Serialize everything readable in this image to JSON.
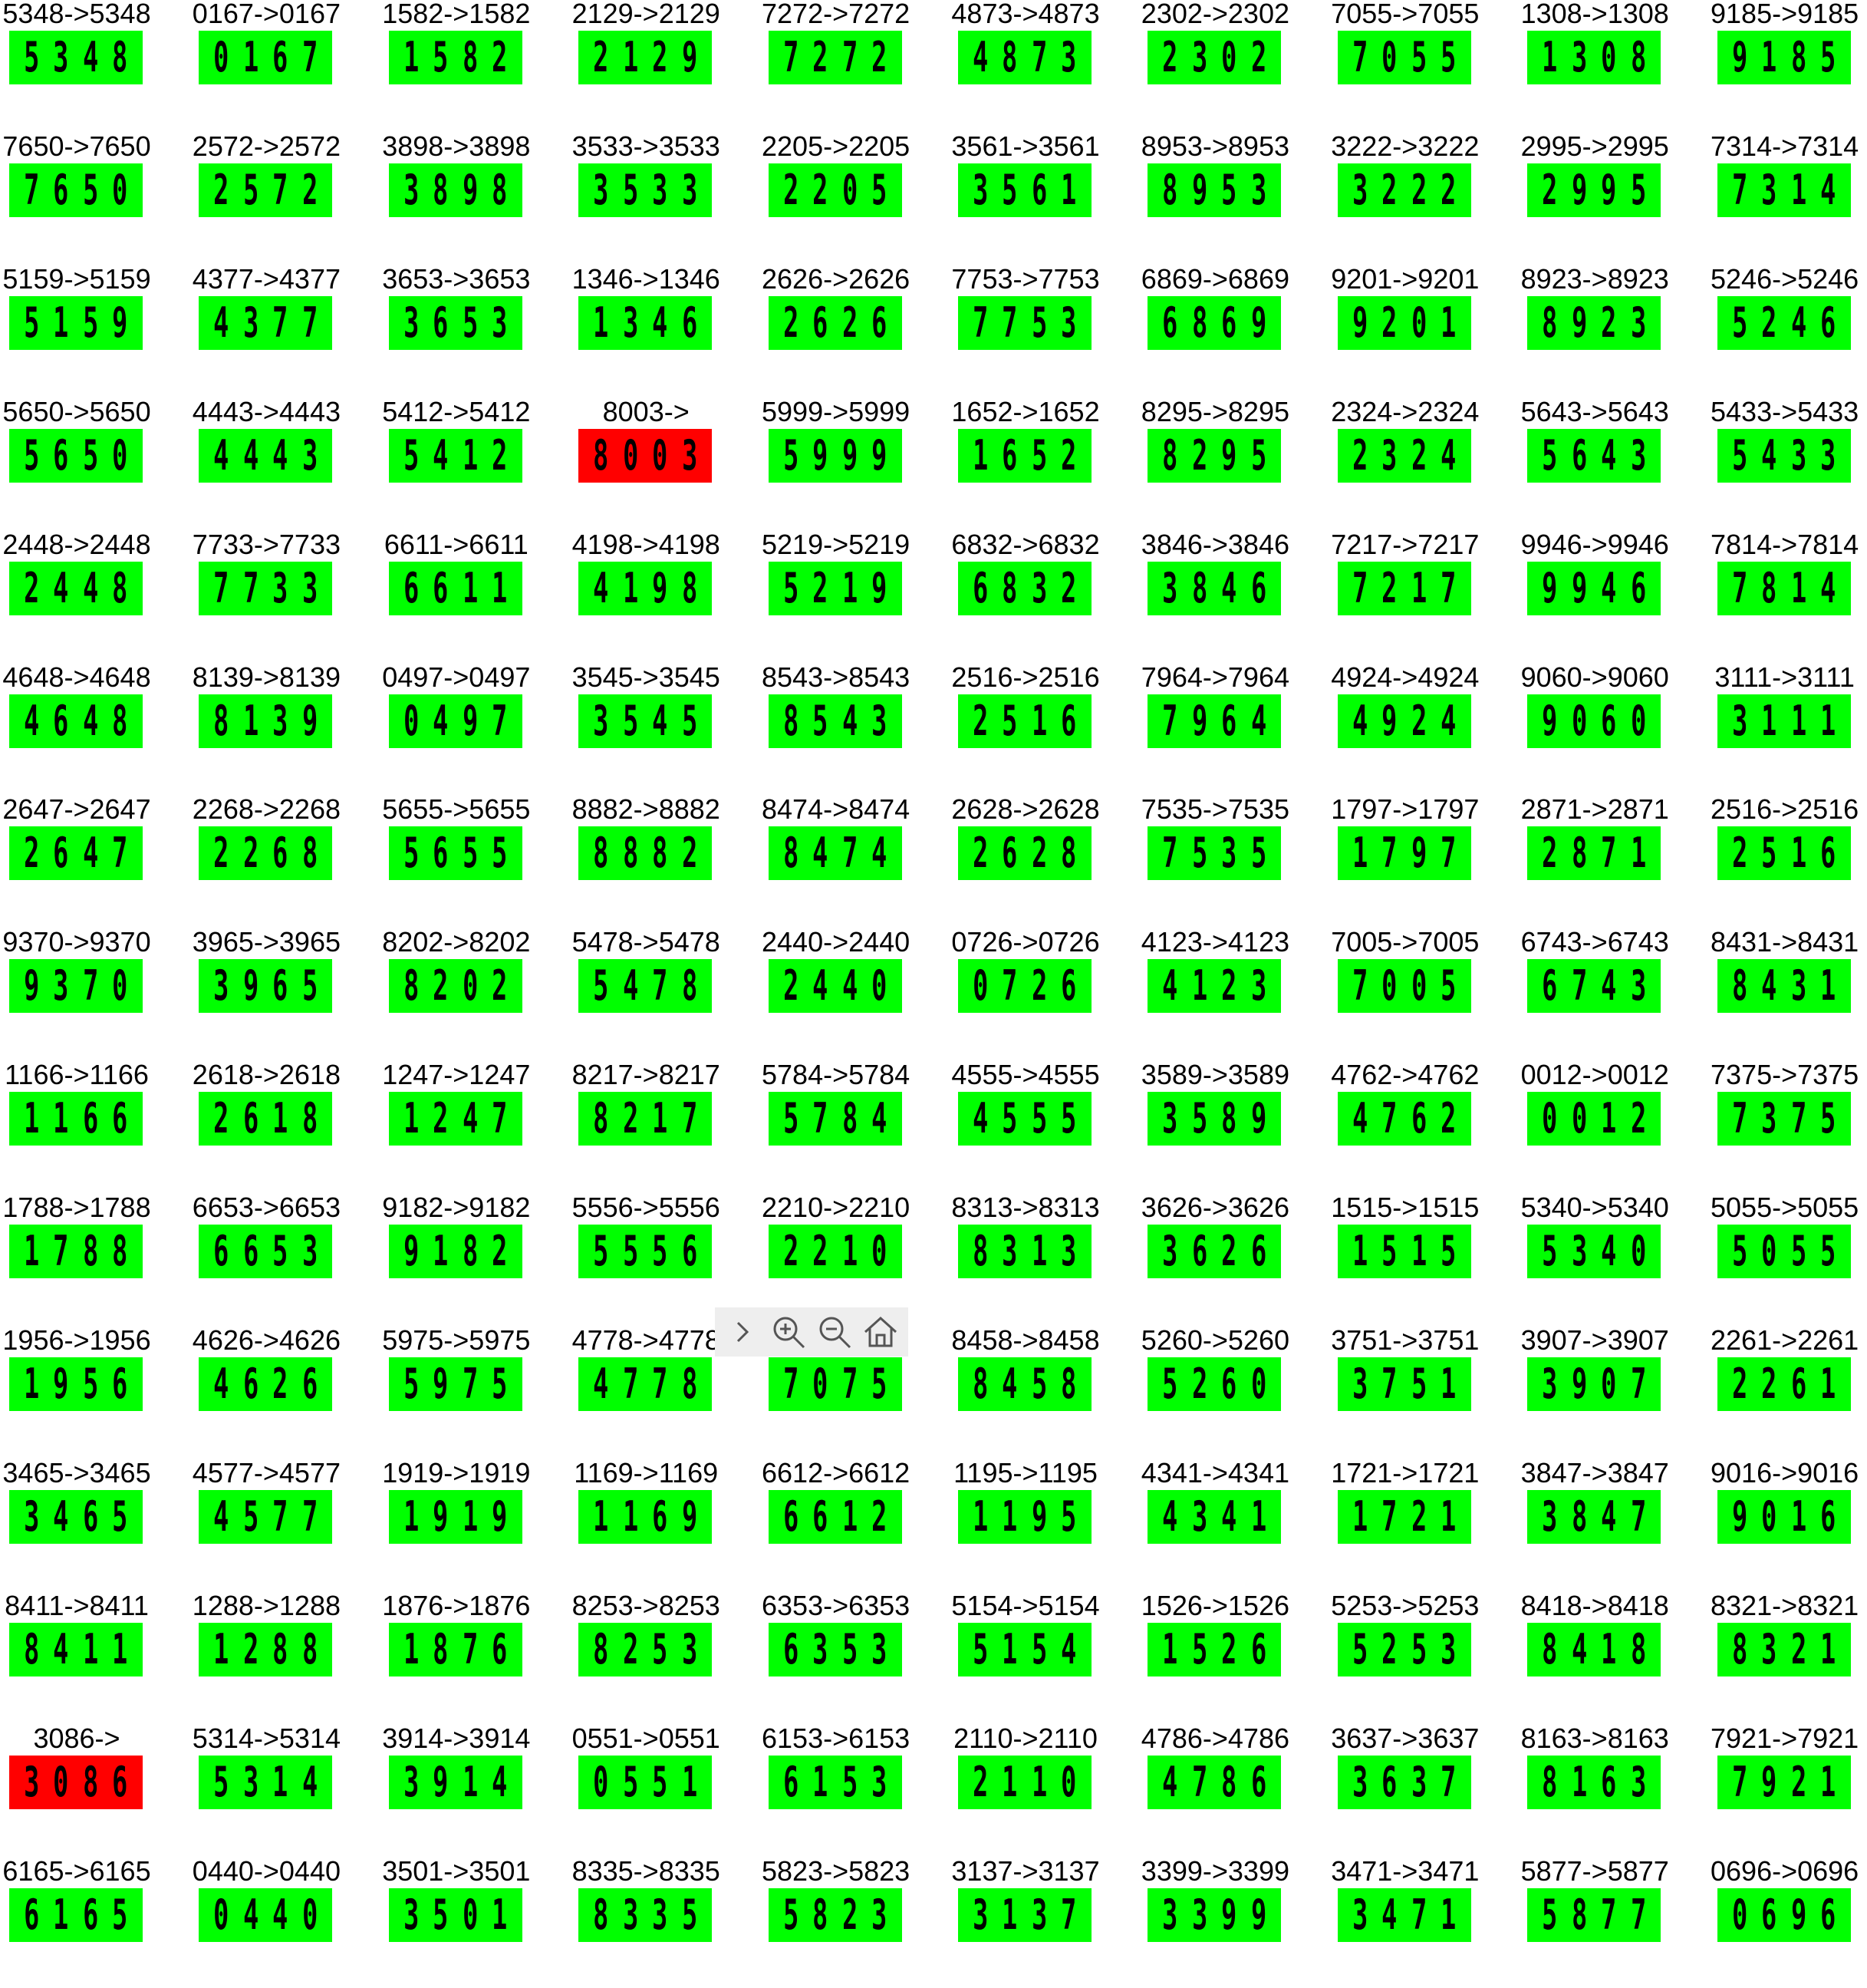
{
  "colors": {
    "ok": "#00ff00",
    "error": "#ff0000",
    "text": "#000000"
  },
  "rows": [
    [
      {
        "label": "5348->5348",
        "digits": "5348",
        "status": "ok"
      },
      {
        "label": "0167->0167",
        "digits": "0167",
        "status": "ok"
      },
      {
        "label": "1582->1582",
        "digits": "1582",
        "status": "ok"
      },
      {
        "label": "2129->2129",
        "digits": "2129",
        "status": "ok"
      },
      {
        "label": "7272->7272",
        "digits": "7272",
        "status": "ok"
      },
      {
        "label": "4873->4873",
        "digits": "4873",
        "status": "ok"
      },
      {
        "label": "2302->2302",
        "digits": "2302",
        "status": "ok"
      },
      {
        "label": "7055->7055",
        "digits": "7055",
        "status": "ok"
      },
      {
        "label": "1308->1308",
        "digits": "1308",
        "status": "ok"
      },
      {
        "label": "9185->9185",
        "digits": "9185",
        "status": "ok"
      }
    ],
    [
      {
        "label": "7650->7650",
        "digits": "7650",
        "status": "ok"
      },
      {
        "label": "2572->2572",
        "digits": "2572",
        "status": "ok"
      },
      {
        "label": "3898->3898",
        "digits": "3898",
        "status": "ok"
      },
      {
        "label": "3533->3533",
        "digits": "3533",
        "status": "ok"
      },
      {
        "label": "2205->2205",
        "digits": "2205",
        "status": "ok"
      },
      {
        "label": "3561->3561",
        "digits": "3561",
        "status": "ok"
      },
      {
        "label": "8953->8953",
        "digits": "8953",
        "status": "ok"
      },
      {
        "label": "3222->3222",
        "digits": "3222",
        "status": "ok"
      },
      {
        "label": "2995->2995",
        "digits": "2995",
        "status": "ok"
      },
      {
        "label": "7314->7314",
        "digits": "7314",
        "status": "ok"
      }
    ],
    [
      {
        "label": "5159->5159",
        "digits": "5159",
        "status": "ok"
      },
      {
        "label": "4377->4377",
        "digits": "4377",
        "status": "ok"
      },
      {
        "label": "3653->3653",
        "digits": "3653",
        "status": "ok"
      },
      {
        "label": "1346->1346",
        "digits": "1346",
        "status": "ok"
      },
      {
        "label": "2626->2626",
        "digits": "2626",
        "status": "ok"
      },
      {
        "label": "7753->7753",
        "digits": "7753",
        "status": "ok"
      },
      {
        "label": "6869->6869",
        "digits": "6869",
        "status": "ok"
      },
      {
        "label": "9201->9201",
        "digits": "9201",
        "status": "ok"
      },
      {
        "label": "8923->8923",
        "digits": "8923",
        "status": "ok"
      },
      {
        "label": "5246->5246",
        "digits": "5246",
        "status": "ok"
      }
    ],
    [
      {
        "label": "5650->5650",
        "digits": "5650",
        "status": "ok"
      },
      {
        "label": "4443->4443",
        "digits": "4443",
        "status": "ok"
      },
      {
        "label": "5412->5412",
        "digits": "5412",
        "status": "ok"
      },
      {
        "label": "8003->",
        "digits": "8003",
        "status": "error"
      },
      {
        "label": "5999->5999",
        "digits": "5999",
        "status": "ok"
      },
      {
        "label": "1652->1652",
        "digits": "1652",
        "status": "ok"
      },
      {
        "label": "8295->8295",
        "digits": "8295",
        "status": "ok"
      },
      {
        "label": "2324->2324",
        "digits": "2324",
        "status": "ok"
      },
      {
        "label": "5643->5643",
        "digits": "5643",
        "status": "ok"
      },
      {
        "label": "5433->5433",
        "digits": "5433",
        "status": "ok"
      }
    ],
    [
      {
        "label": "2448->2448",
        "digits": "2448",
        "status": "ok"
      },
      {
        "label": "7733->7733",
        "digits": "7733",
        "status": "ok"
      },
      {
        "label": "6611->6611",
        "digits": "6611",
        "status": "ok"
      },
      {
        "label": "4198->4198",
        "digits": "4198",
        "status": "ok"
      },
      {
        "label": "5219->5219",
        "digits": "5219",
        "status": "ok"
      },
      {
        "label": "6832->6832",
        "digits": "6832",
        "status": "ok"
      },
      {
        "label": "3846->3846",
        "digits": "3846",
        "status": "ok"
      },
      {
        "label": "7217->7217",
        "digits": "7217",
        "status": "ok"
      },
      {
        "label": "9946->9946",
        "digits": "9946",
        "status": "ok"
      },
      {
        "label": "7814->7814",
        "digits": "7814",
        "status": "ok"
      }
    ],
    [
      {
        "label": "4648->4648",
        "digits": "4648",
        "status": "ok"
      },
      {
        "label": "8139->8139",
        "digits": "8139",
        "status": "ok"
      },
      {
        "label": "0497->0497",
        "digits": "0497",
        "status": "ok"
      },
      {
        "label": "3545->3545",
        "digits": "3545",
        "status": "ok"
      },
      {
        "label": "8543->8543",
        "digits": "8543",
        "status": "ok"
      },
      {
        "label": "2516->2516",
        "digits": "2516",
        "status": "ok"
      },
      {
        "label": "7964->7964",
        "digits": "7964",
        "status": "ok"
      },
      {
        "label": "4924->4924",
        "digits": "4924",
        "status": "ok"
      },
      {
        "label": "9060->9060",
        "digits": "9060",
        "status": "ok"
      },
      {
        "label": "3111->3111",
        "digits": "3111",
        "status": "ok"
      }
    ],
    [
      {
        "label": "2647->2647",
        "digits": "2647",
        "status": "ok"
      },
      {
        "label": "2268->2268",
        "digits": "2268",
        "status": "ok"
      },
      {
        "label": "5655->5655",
        "digits": "5655",
        "status": "ok"
      },
      {
        "label": "8882->8882",
        "digits": "8882",
        "status": "ok"
      },
      {
        "label": "8474->8474",
        "digits": "8474",
        "status": "ok"
      },
      {
        "label": "2628->2628",
        "digits": "2628",
        "status": "ok"
      },
      {
        "label": "7535->7535",
        "digits": "7535",
        "status": "ok"
      },
      {
        "label": "1797->1797",
        "digits": "1797",
        "status": "ok"
      },
      {
        "label": "2871->2871",
        "digits": "2871",
        "status": "ok"
      },
      {
        "label": "2516->2516",
        "digits": "2516",
        "status": "ok"
      }
    ],
    [
      {
        "label": "9370->9370",
        "digits": "9370",
        "status": "ok"
      },
      {
        "label": "3965->3965",
        "digits": "3965",
        "status": "ok"
      },
      {
        "label": "8202->8202",
        "digits": "8202",
        "status": "ok"
      },
      {
        "label": "5478->5478",
        "digits": "5478",
        "status": "ok"
      },
      {
        "label": "2440->2440",
        "digits": "2440",
        "status": "ok"
      },
      {
        "label": "0726->0726",
        "digits": "0726",
        "status": "ok"
      },
      {
        "label": "4123->4123",
        "digits": "4123",
        "status": "ok"
      },
      {
        "label": "7005->7005",
        "digits": "7005",
        "status": "ok"
      },
      {
        "label": "6743->6743",
        "digits": "6743",
        "status": "ok"
      },
      {
        "label": "8431->8431",
        "digits": "8431",
        "status": "ok"
      }
    ],
    [
      {
        "label": "1166->1166",
        "digits": "1166",
        "status": "ok"
      },
      {
        "label": "2618->2618",
        "digits": "2618",
        "status": "ok"
      },
      {
        "label": "1247->1247",
        "digits": "1247",
        "status": "ok"
      },
      {
        "label": "8217->8217",
        "digits": "8217",
        "status": "ok"
      },
      {
        "label": "5784->5784",
        "digits": "5784",
        "status": "ok"
      },
      {
        "label": "4555->4555",
        "digits": "4555",
        "status": "ok"
      },
      {
        "label": "3589->3589",
        "digits": "3589",
        "status": "ok"
      },
      {
        "label": "4762->4762",
        "digits": "4762",
        "status": "ok"
      },
      {
        "label": "0012->0012",
        "digits": "0012",
        "status": "ok"
      },
      {
        "label": "7375->7375",
        "digits": "7375",
        "status": "ok"
      }
    ],
    [
      {
        "label": "1788->1788",
        "digits": "1788",
        "status": "ok"
      },
      {
        "label": "6653->6653",
        "digits": "6653",
        "status": "ok"
      },
      {
        "label": "9182->9182",
        "digits": "9182",
        "status": "ok"
      },
      {
        "label": "5556->5556",
        "digits": "5556",
        "status": "ok"
      },
      {
        "label": "2210->2210",
        "digits": "2210",
        "status": "ok"
      },
      {
        "label": "8313->8313",
        "digits": "8313",
        "status": "ok"
      },
      {
        "label": "3626->3626",
        "digits": "3626",
        "status": "ok"
      },
      {
        "label": "1515->1515",
        "digits": "1515",
        "status": "ok"
      },
      {
        "label": "5340->5340",
        "digits": "5340",
        "status": "ok"
      },
      {
        "label": "5055->5055",
        "digits": "5055",
        "status": "ok"
      }
    ],
    [
      {
        "label": "1956->1956",
        "digits": "1956",
        "status": "ok"
      },
      {
        "label": "4626->4626",
        "digits": "4626",
        "status": "ok"
      },
      {
        "label": "5975->5975",
        "digits": "5975",
        "status": "ok"
      },
      {
        "label": "4778->4778",
        "digits": "4778",
        "status": "ok"
      },
      {
        "label": "",
        "digits": "7075",
        "status": "ok"
      },
      {
        "label": "8458->8458",
        "digits": "8458",
        "status": "ok"
      },
      {
        "label": "5260->5260",
        "digits": "5260",
        "status": "ok"
      },
      {
        "label": "3751->3751",
        "digits": "3751",
        "status": "ok"
      },
      {
        "label": "3907->3907",
        "digits": "3907",
        "status": "ok"
      },
      {
        "label": "2261->2261",
        "digits": "2261",
        "status": "ok"
      }
    ],
    [
      {
        "label": "3465->3465",
        "digits": "3465",
        "status": "ok"
      },
      {
        "label": "4577->4577",
        "digits": "4577",
        "status": "ok"
      },
      {
        "label": "1919->1919",
        "digits": "1919",
        "status": "ok"
      },
      {
        "label": "1169->1169",
        "digits": "1169",
        "status": "ok"
      },
      {
        "label": "6612->6612",
        "digits": "6612",
        "status": "ok"
      },
      {
        "label": "1195->1195",
        "digits": "1195",
        "status": "ok"
      },
      {
        "label": "4341->4341",
        "digits": "4341",
        "status": "ok"
      },
      {
        "label": "1721->1721",
        "digits": "1721",
        "status": "ok"
      },
      {
        "label": "3847->3847",
        "digits": "3847",
        "status": "ok"
      },
      {
        "label": "9016->9016",
        "digits": "9016",
        "status": "ok"
      }
    ],
    [
      {
        "label": "8411->8411",
        "digits": "8411",
        "status": "ok"
      },
      {
        "label": "1288->1288",
        "digits": "1288",
        "status": "ok"
      },
      {
        "label": "1876->1876",
        "digits": "1876",
        "status": "ok"
      },
      {
        "label": "8253->8253",
        "digits": "8253",
        "status": "ok"
      },
      {
        "label": "6353->6353",
        "digits": "6353",
        "status": "ok"
      },
      {
        "label": "5154->5154",
        "digits": "5154",
        "status": "ok"
      },
      {
        "label": "1526->1526",
        "digits": "1526",
        "status": "ok"
      },
      {
        "label": "5253->5253",
        "digits": "5253",
        "status": "ok"
      },
      {
        "label": "8418->8418",
        "digits": "8418",
        "status": "ok"
      },
      {
        "label": "8321->8321",
        "digits": "8321",
        "status": "ok"
      }
    ],
    [
      {
        "label": "3086->",
        "digits": "3086",
        "status": "error"
      },
      {
        "label": "5314->5314",
        "digits": "5314",
        "status": "ok"
      },
      {
        "label": "3914->3914",
        "digits": "3914",
        "status": "ok"
      },
      {
        "label": "0551->0551",
        "digits": "0551",
        "status": "ok"
      },
      {
        "label": "6153->6153",
        "digits": "6153",
        "status": "ok"
      },
      {
        "label": "2110->2110",
        "digits": "2110",
        "status": "ok"
      },
      {
        "label": "4786->4786",
        "digits": "4786",
        "status": "ok"
      },
      {
        "label": "3637->3637",
        "digits": "3637",
        "status": "ok"
      },
      {
        "label": "8163->8163",
        "digits": "8163",
        "status": "ok"
      },
      {
        "label": "7921->7921",
        "digits": "7921",
        "status": "ok"
      }
    ],
    [
      {
        "label": "6165->6165",
        "digits": "6165",
        "status": "ok"
      },
      {
        "label": "0440->0440",
        "digits": "0440",
        "status": "ok"
      },
      {
        "label": "3501->3501",
        "digits": "3501",
        "status": "ok"
      },
      {
        "label": "8335->8335",
        "digits": "8335",
        "status": "ok"
      },
      {
        "label": "5823->5823",
        "digits": "5823",
        "status": "ok"
      },
      {
        "label": "3137->3137",
        "digits": "3137",
        "status": "ok"
      },
      {
        "label": "3399->3399",
        "digits": "3399",
        "status": "ok"
      },
      {
        "label": "3471->3471",
        "digits": "3471",
        "status": "ok"
      },
      {
        "label": "5877->5877",
        "digits": "5877",
        "status": "ok"
      },
      {
        "label": "0696->0696",
        "digits": "0696",
        "status": "ok"
      }
    ]
  ],
  "toolbar": {
    "buttons": [
      {
        "name": "forward-button",
        "icon": "chevron-right-icon"
      },
      {
        "name": "zoom-in-button",
        "icon": "zoom-in-icon"
      },
      {
        "name": "zoom-out-button",
        "icon": "zoom-out-icon"
      },
      {
        "name": "home-button",
        "icon": "home-icon"
      }
    ]
  }
}
